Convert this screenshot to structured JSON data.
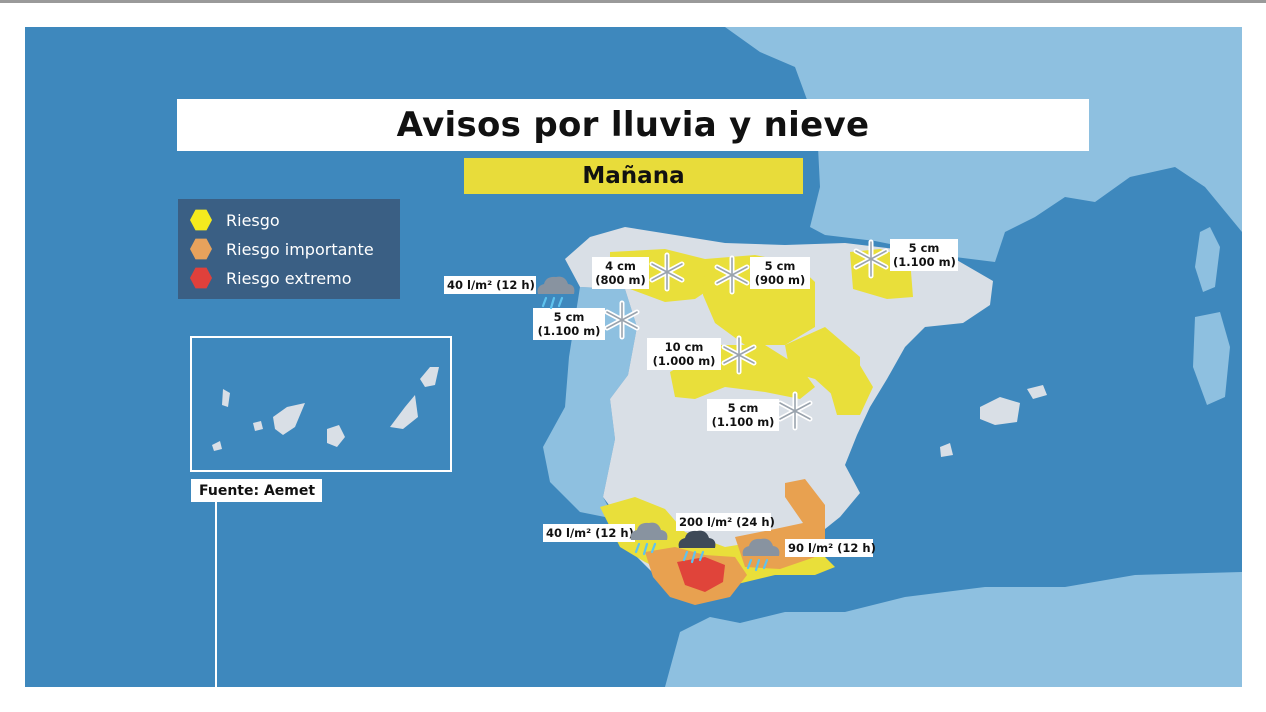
{
  "title": "Avisos por lluvia y nieve",
  "subtitle": "Mañana",
  "legend": [
    {
      "label": "Riesgo",
      "color": "#f4ea1e"
    },
    {
      "label": "Riesgo importante",
      "color": "#e7a25c"
    },
    {
      "label": "Riesgo extremo",
      "color": "#e0403b"
    }
  ],
  "source": "Fuente: Aemet",
  "colors": {
    "sea": "#3e88bd",
    "land": "#d9dfe6",
    "foreign_land": "#8ec0e0",
    "riesgo": "#e9df3a",
    "riesgo_importante": "#e8a150",
    "riesgo_extremo": "#e0443a"
  },
  "snow_labels": [
    {
      "line1": "4 cm",
      "line2": "(800 m)",
      "icon": "snowflake-icon"
    },
    {
      "line1": "5 cm",
      "line2": "(900 m)",
      "icon": "snowflake-icon"
    },
    {
      "line1": "5 cm",
      "line2": "(1.100 m)",
      "icon": "snowflake-icon"
    },
    {
      "line1": "5 cm",
      "line2": "(1.100 m)",
      "icon": "snowflake-icon"
    },
    {
      "line1": "10 cm",
      "line2": "(1.000 m)",
      "icon": "snowflake-icon"
    },
    {
      "line1": "5 cm",
      "line2": "(1.100 m)",
      "icon": "snowflake-icon"
    }
  ],
  "rain_labels": [
    {
      "text": "40 l/m² (12 h)",
      "icon": "rain-cloud-icon"
    },
    {
      "text": "40 l/m² (12 h)",
      "icon": "rain-cloud-icon"
    },
    {
      "text": "200 l/m² (24 h)",
      "icon": "rain-cloud-icon"
    },
    {
      "text": "90 l/m² (12 h)",
      "icon": "rain-cloud-icon"
    }
  ]
}
